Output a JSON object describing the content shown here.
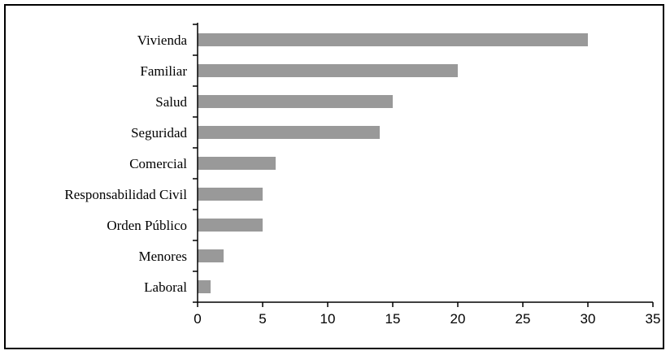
{
  "chart_data": {
    "type": "bar",
    "orientation": "horizontal",
    "categories": [
      "Vivienda",
      "Familiar",
      "Salud",
      "Seguridad",
      "Comercial",
      "Responsabilidad Civil",
      "Orden Público",
      "Menores",
      "Laboral"
    ],
    "values": [
      30,
      20,
      15,
      14,
      6,
      5,
      5,
      2,
      1
    ],
    "xlim": [
      0,
      35
    ],
    "xticks": [
      0,
      5,
      10,
      15,
      20,
      25,
      30,
      35
    ],
    "title": "",
    "xlabel": "",
    "ylabel": "",
    "grid": false,
    "legend": "none",
    "bar_color": "#999999",
    "axis_color": "#000000"
  }
}
